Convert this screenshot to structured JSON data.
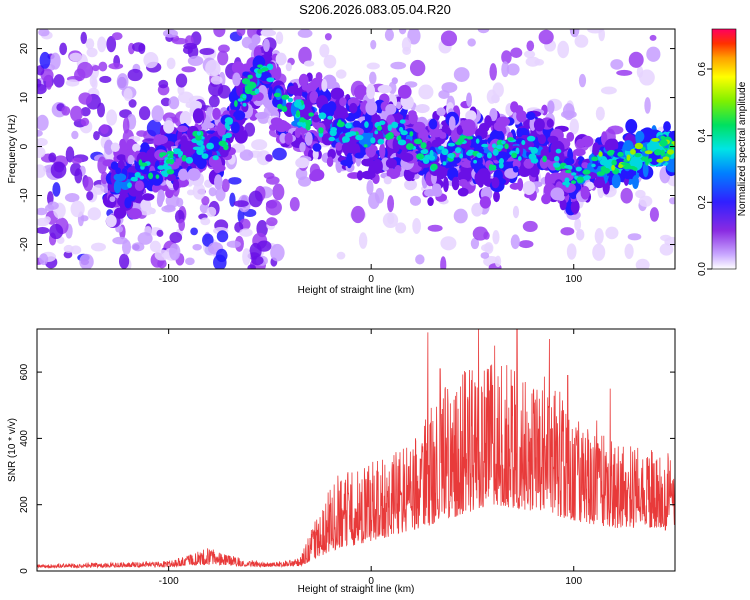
{
  "title": "S206.2026.083.05.04.R20",
  "chart_data": [
    {
      "type": "heatmap",
      "title": "S206.2026.083.05.04.R20",
      "xlabel": "Height of straight line (km)",
      "ylabel": "Frequency (Hz)",
      "xlim": [
        -165,
        150
      ],
      "ylim": [
        -25,
        24
      ],
      "xticks": [
        -100,
        0,
        100
      ],
      "yticks": [
        -20,
        -10,
        0,
        10,
        20
      ],
      "colorbar": {
        "label": "Normalized spectral amplitude",
        "range": [
          0.0,
          0.72
        ],
        "ticks": [
          0.0,
          0.2,
          0.4,
          0.6
        ],
        "tick_labels": [
          "0.0",
          "0.2",
          "0.4",
          "0.6"
        ]
      },
      "ridge": {
        "x": [
          -125,
          -110,
          -95,
          -85,
          -75,
          -60,
          -50,
          -45,
          -30,
          -15,
          0,
          15,
          30,
          45,
          60,
          75,
          90,
          100,
          110,
          125,
          140,
          150
        ],
        "y": [
          -7,
          -5,
          -2,
          1,
          -1,
          13,
          15,
          8,
          6,
          3,
          2,
          3,
          -2,
          0,
          -2,
          0,
          -2,
          -7,
          -4,
          -3,
          -1,
          0
        ]
      }
    },
    {
      "type": "line",
      "xlabel": "Height of straight line (km)",
      "ylabel": "SNR (10 * v/v)",
      "xlim": [
        -165,
        150
      ],
      "ylim": [
        0,
        730
      ],
      "xticks": [
        -100,
        0,
        100
      ],
      "yticks": [
        0,
        200,
        400,
        600
      ],
      "series": [
        {
          "name": "SNR",
          "color": "#e83a3a",
          "envelope_x": [
            -165,
            -100,
            -80,
            -65,
            -50,
            -35,
            -20,
            0,
            20,
            35,
            50,
            60,
            70,
            80,
            90,
            100,
            110,
            120,
            135,
            150
          ],
          "envelope_y": [
            20,
            30,
            70,
            40,
            25,
            40,
            280,
            330,
            380,
            560,
            620,
            650,
            620,
            600,
            580,
            460,
            470,
            380,
            380,
            350
          ],
          "baseline_y": [
            10,
            12,
            20,
            15,
            12,
            15,
            60,
            90,
            120,
            150,
            180,
            200,
            190,
            180,
            170,
            150,
            140,
            130,
            130,
            120
          ],
          "peaks": [
            [
              28,
              720
            ],
            [
              34,
              610
            ],
            [
              53,
              730
            ],
            [
              61,
              680
            ],
            [
              72,
              740
            ],
            [
              88,
              700
            ],
            [
              97,
              590
            ],
            [
              118,
              550
            ]
          ]
        }
      ]
    }
  ]
}
